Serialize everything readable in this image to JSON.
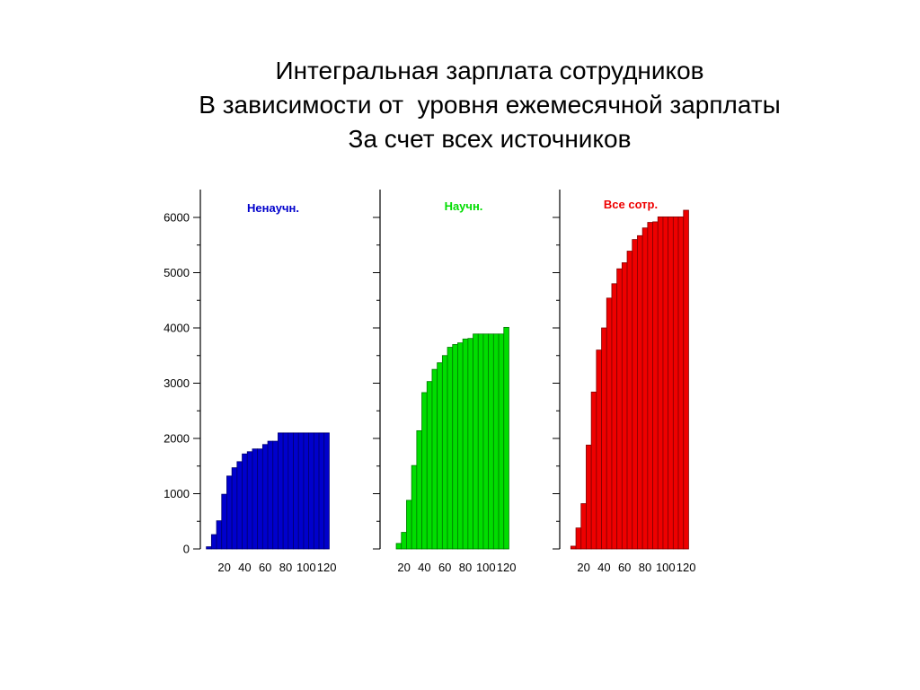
{
  "title": {
    "line1": "Интегральная зарплата сотрудников",
    "line2": "В зависимости от  уровня ежемесячной зарплаты",
    "line3": "За счет всех источников"
  },
  "chart_data": [
    {
      "type": "bar",
      "title": "Ненаучн.",
      "color": "#0000cc",
      "x": [
        5,
        10,
        15,
        20,
        25,
        30,
        35,
        40,
        45,
        50,
        55,
        60,
        65,
        70,
        75,
        80,
        85,
        90,
        95,
        100,
        105,
        110,
        115,
        120
      ],
      "values": [
        40,
        260,
        510,
        990,
        1320,
        1470,
        1580,
        1720,
        1760,
        1810,
        1810,
        1890,
        1950,
        1950,
        2100,
        2100,
        2100,
        2100,
        2100,
        2100,
        2100,
        2100,
        2100,
        2100
      ],
      "xticks": [
        20,
        40,
        60,
        80,
        100,
        120
      ],
      "ylim": [
        0,
        6400
      ],
      "yticks": [
        0,
        1000,
        2000,
        3000,
        4000,
        5000,
        6000
      ]
    },
    {
      "type": "bar",
      "title": "Научн.",
      "color": "#00dd00",
      "x": [
        5,
        10,
        15,
        20,
        25,
        30,
        35,
        40,
        45,
        50,
        55,
        60,
        65,
        70,
        75,
        80,
        85,
        90,
        95,
        100,
        105,
        110,
        115,
        120
      ],
      "values": [
        0,
        0,
        100,
        300,
        880,
        1510,
        2140,
        2830,
        3030,
        3250,
        3370,
        3500,
        3650,
        3700,
        3730,
        3800,
        3810,
        3890,
        3890,
        3890,
        3890,
        3890,
        3890,
        4010
      ],
      "xticks": [
        20,
        40,
        60,
        80,
        100,
        120
      ],
      "ylim": [
        0,
        6400
      ],
      "yticks": [
        0,
        1000,
        2000,
        3000,
        4000,
        5000,
        6000
      ]
    },
    {
      "type": "bar",
      "title": "Все сотр.",
      "color": "#ee0000",
      "x": [
        5,
        10,
        15,
        20,
        25,
        30,
        35,
        40,
        45,
        50,
        55,
        60,
        65,
        70,
        75,
        80,
        85,
        90,
        95,
        100,
        105,
        110,
        115,
        120
      ],
      "values": [
        0,
        50,
        380,
        820,
        1880,
        2840,
        3600,
        4000,
        4540,
        4800,
        5070,
        5180,
        5390,
        5600,
        5670,
        5810,
        5910,
        5920,
        6010,
        6010,
        6010,
        6010,
        6010,
        6130
      ],
      "xticks": [
        20,
        40,
        60,
        80,
        100,
        120
      ],
      "ylim": [
        0,
        6400
      ],
      "yticks": [
        0,
        1000,
        2000,
        3000,
        4000,
        5000,
        6000
      ]
    }
  ]
}
